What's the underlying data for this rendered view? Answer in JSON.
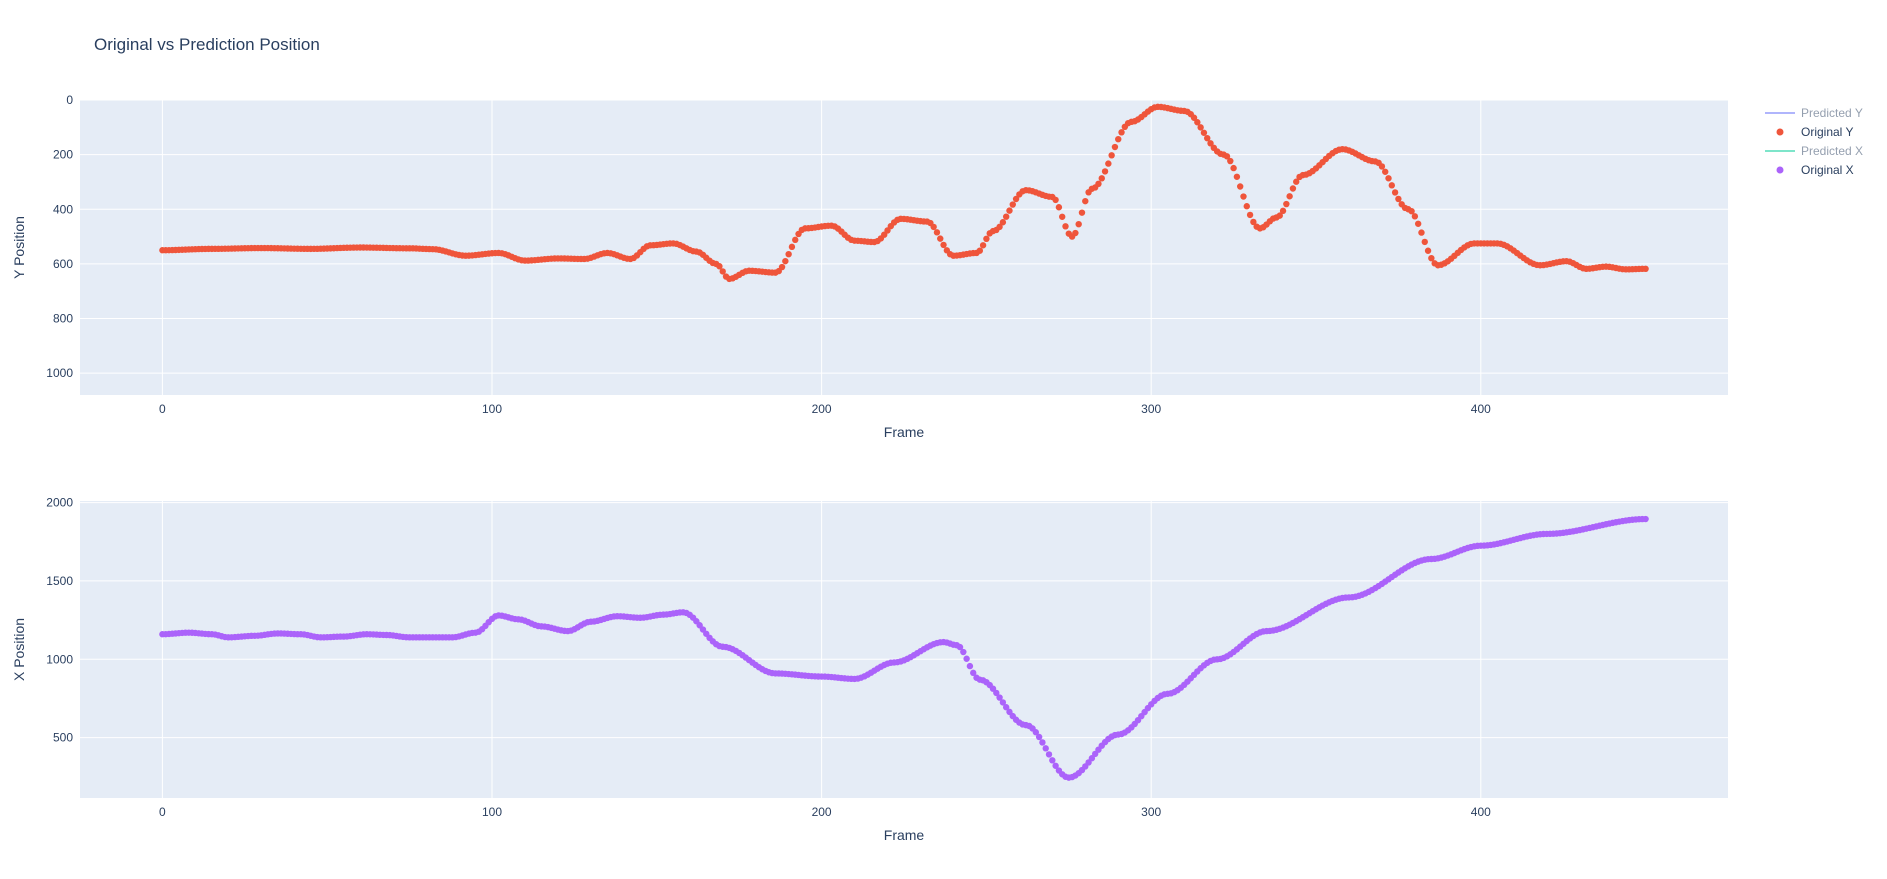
{
  "chart_data": {
    "title": "Original vs Prediction Position",
    "legend": [
      {
        "name": "Predicted Y",
        "kind": "line",
        "color": "#636efa",
        "hidden": true
      },
      {
        "name": "Original Y",
        "kind": "marker",
        "color": "#ef553b",
        "hidden": false
      },
      {
        "name": "Predicted X",
        "kind": "line",
        "color": "#00cc96",
        "hidden": true
      },
      {
        "name": "Original X",
        "kind": "marker",
        "color": "#ab63fa",
        "hidden": false
      }
    ],
    "legend_placement": "top-right",
    "grid": true,
    "subplots": [
      {
        "type": "scatter",
        "ylabel": "Y Position",
        "xlabel": "Frame",
        "xlim": [
          -25,
          475
        ],
        "ylim": [
          1080,
          0
        ],
        "y_reversed": true,
        "xticks": [
          0,
          100,
          200,
          300,
          400
        ],
        "yticks": [
          0,
          200,
          400,
          600,
          800,
          1000
        ],
        "series": [
          {
            "name": "Original Y",
            "color": "#ef553b",
            "keypoints": [
              [
                0,
                550
              ],
              [
                15,
                545
              ],
              [
                30,
                542
              ],
              [
                45,
                545
              ],
              [
                60,
                540
              ],
              [
                75,
                543
              ],
              [
                82,
                546
              ],
              [
                92,
                570
              ],
              [
                102,
                560
              ],
              [
                110,
                588
              ],
              [
                120,
                580
              ],
              [
                128,
                582
              ],
              [
                135,
                560
              ],
              [
                142,
                582
              ],
              [
                148,
                532
              ],
              [
                155,
                525
              ],
              [
                162,
                555
              ],
              [
                168,
                600
              ],
              [
                172,
                655
              ],
              [
                178,
                625
              ],
              [
                186,
                632
              ],
              [
                195,
                470
              ],
              [
                203,
                460
              ],
              [
                210,
                515
              ],
              [
                216,
                520
              ],
              [
                224,
                435
              ],
              [
                232,
                445
              ],
              [
                240,
                570
              ],
              [
                247,
                560
              ],
              [
                252,
                480
              ],
              [
                262,
                330
              ],
              [
                270,
                355
              ],
              [
                276,
                500
              ],
              [
                282,
                325
              ],
              [
                294,
                80
              ],
              [
                302,
                25
              ],
              [
                310,
                40
              ],
              [
                322,
                200
              ],
              [
                333,
                470
              ],
              [
                338,
                430
              ],
              [
                346,
                275
              ],
              [
                358,
                180
              ],
              [
                368,
                225
              ],
              [
                378,
                400
              ],
              [
                387,
                605
              ],
              [
                398,
                525
              ],
              [
                405,
                525
              ],
              [
                418,
                605
              ],
              [
                426,
                590
              ],
              [
                432,
                618
              ],
              [
                438,
                610
              ],
              [
                444,
                620
              ],
              [
                450,
                618
              ]
            ]
          }
        ]
      },
      {
        "type": "scatter",
        "ylabel": "X Position",
        "xlabel": "Frame",
        "xlim": [
          -25,
          475
        ],
        "ylim": [
          115,
          2010
        ],
        "y_reversed": false,
        "xticks": [
          0,
          100,
          200,
          300,
          400
        ],
        "yticks": [
          500,
          1000,
          1500,
          2000
        ],
        "series": [
          {
            "name": "Original X",
            "color": "#ab63fa",
            "keypoints": [
              [
                0,
                1160
              ],
              [
                8,
                1170
              ],
              [
                15,
                1160
              ],
              [
                20,
                1140
              ],
              [
                28,
                1150
              ],
              [
                35,
                1165
              ],
              [
                42,
                1160
              ],
              [
                48,
                1140
              ],
              [
                55,
                1145
              ],
              [
                62,
                1160
              ],
              [
                68,
                1155
              ],
              [
                75,
                1140
              ],
              [
                88,
                1140
              ],
              [
                95,
                1170
              ],
              [
                102,
                1280
              ],
              [
                108,
                1255
              ],
              [
                115,
                1210
              ],
              [
                123,
                1180
              ],
              [
                130,
                1240
              ],
              [
                138,
                1275
              ],
              [
                145,
                1265
              ],
              [
                152,
                1285
              ],
              [
                158,
                1300
              ],
              [
                170,
                1080
              ],
              [
                186,
                910
              ],
              [
                200,
                890
              ],
              [
                210,
                875
              ],
              [
                222,
                980
              ],
              [
                237,
                1110
              ],
              [
                241,
                1090
              ],
              [
                248,
                870
              ],
              [
                262,
                580
              ],
              [
                275,
                245
              ],
              [
                290,
                520
              ],
              [
                305,
                780
              ],
              [
                320,
                1000
              ],
              [
                335,
                1180
              ],
              [
                360,
                1395
              ],
              [
                385,
                1640
              ],
              [
                400,
                1725
              ],
              [
                420,
                1800
              ],
              [
                450,
                1895
              ]
            ]
          }
        ]
      }
    ]
  }
}
